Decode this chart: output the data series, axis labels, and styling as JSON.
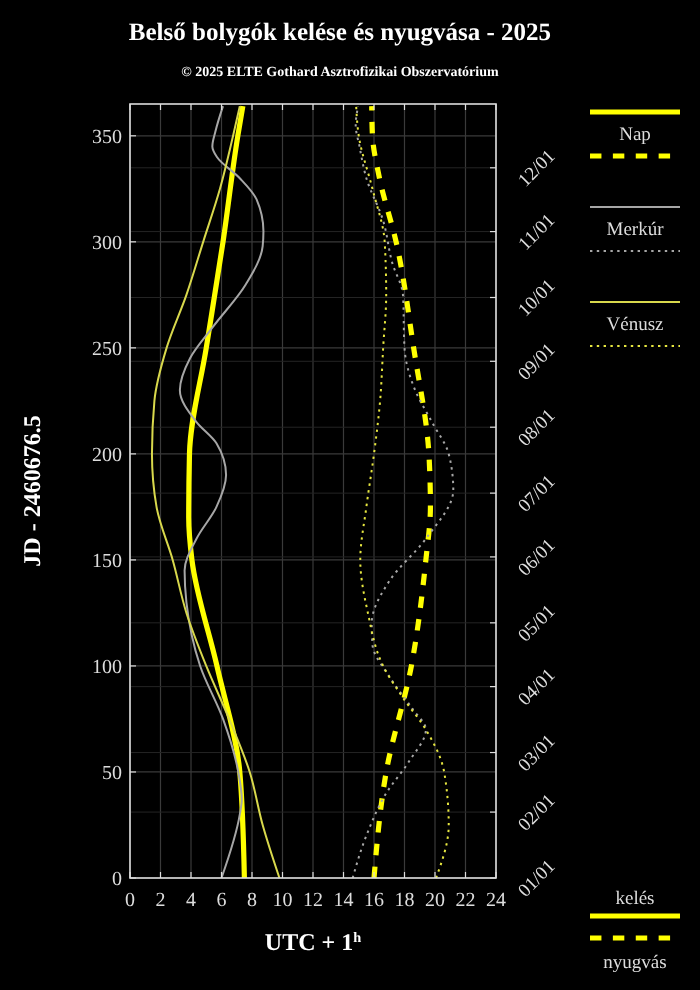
{
  "chart_data": {
    "type": "line",
    "title": "Belső bolygók kelése és nyugvása - 2025",
    "subtitle": "© 2025 ELTE Gothard Asztrofizikai Obszervatórium",
    "xlabel": "UTC + 1$^{h}$",
    "ylabel": "JD - 2460676.5",
    "xlim": [
      0,
      24
    ],
    "xticks": [
      0,
      2,
      4,
      6,
      8,
      10,
      12,
      14,
      16,
      18,
      20,
      22,
      24
    ],
    "ylim": [
      0,
      365
    ],
    "yticks": [
      0,
      50,
      100,
      150,
      200,
      250,
      300,
      350
    ],
    "y2lim": [
      "--01-01",
      "--12-31"
    ],
    "y2ticks": [
      {
        "value": "--01-01",
        "label": "01/01"
      },
      {
        "value": "--02-01",
        "label": "02/01"
      },
      {
        "value": "--03-01",
        "label": "03/01"
      },
      {
        "value": "--04-01",
        "label": "04/01"
      },
      {
        "value": "--05-01",
        "label": "05/01"
      },
      {
        "value": "--06-01",
        "label": "06/01"
      },
      {
        "value": "--07-01",
        "label": "07/01"
      },
      {
        "value": "--08-01",
        "label": "08/01"
      },
      {
        "value": "--09-01",
        "label": "09/01"
      },
      {
        "value": "--10-01",
        "label": "10/01"
      },
      {
        "value": "--11-01",
        "label": "11/01"
      },
      {
        "value": "--12-01",
        "label": "12/01"
      }
    ],
    "grid": true,
    "legend": "right",
    "marker": "none",
    "annotations": [
      "kelés",
      "nyugvás"
    ],
    "series": [
      {
        "name": "Nap",
        "color": "#ffff00",
        "line_style": "solid",
        "x": [
          7.5,
          7.2,
          5.7,
          4.06,
          3.85,
          3.9,
          5.0,
          6.1,
          7.07,
          7.4
        ],
        "values": [
          0,
          50,
          100,
          150,
          170,
          200,
          250,
          300,
          350,
          364
        ]
      },
      {
        "color": "#ffff00",
        "line_style": "dashed",
        "x": [
          16.0,
          16.8,
          18.45,
          19.4,
          19.7,
          19.6,
          18.6,
          17.45,
          16.36,
          15.9,
          15.85
        ],
        "values": [
          0,
          50,
          100,
          150,
          175,
          200,
          250,
          300,
          330,
          350,
          364
        ]
      },
      {
        "name": "Merkúr",
        "color": "#a6a6a6",
        "line_style": "solid",
        "x": [
          6.0,
          7.2,
          7.33,
          7.1,
          6.1,
          4.6,
          3.7,
          3.58,
          4.36,
          5.67,
          6.3,
          5.67,
          4.36,
          3.27,
          3.93,
          5.45,
          7.6,
          8.7,
          8.75,
          8.3,
          7.2,
          5.7,
          5.4,
          5.6,
          6.1
        ],
        "values": [
          0,
          30,
          37,
          50,
          75,
          100,
          130,
          145,
          160,
          175,
          190,
          205,
          215,
          230,
          245,
          260,
          280,
          298,
          305,
          320,
          330,
          340,
          345,
          352,
          364
        ]
      },
      {
        "color": "#a6a6a6",
        "line_style": "dotted",
        "x": [
          14.6,
          15.5,
          16.8,
          18.3,
          19.4,
          18.5,
          17.0,
          15.9,
          15.85,
          17.0,
          19.4,
          21.2,
          20.9,
          19.8,
          18.7,
          18.0,
          17.9,
          17.2,
          16.6,
          15.5,
          15.05,
          14.8,
          14.96
        ],
        "values": [
          0,
          20,
          40,
          55,
          70,
          80,
          95,
          110,
          120,
          140,
          160,
          183,
          200,
          215,
          230,
          250,
          275,
          290,
          310,
          330,
          345,
          355,
          364
        ]
      },
      {
        "name": "Vénusz",
        "color": "#d8d84c",
        "line_style": "solid",
        "x": [
          9.8,
          8.7,
          7.85,
          6.5,
          5.0,
          3.7,
          2.8,
          1.74,
          1.44,
          1.6,
          2.4,
          3.7,
          4.8,
          5.9,
          6.76,
          7.2
        ],
        "values": [
          0,
          25,
          50,
          75,
          100,
          125,
          150,
          175,
          200,
          225,
          250,
          275,
          300,
          325,
          350,
          364
        ]
      },
      {
        "color": "#e6e640",
        "line_style": "dotted",
        "x": [
          20.07,
          20.9,
          20.6,
          19.4,
          17.9,
          16.6,
          15.6,
          15.1,
          15.5,
          16.0,
          16.4,
          16.6,
          16.8,
          16.7,
          15.9,
          15.0,
          14.83
        ],
        "values": [
          0,
          25,
          50,
          70,
          85,
          100,
          125,
          150,
          175,
          200,
          225,
          250,
          275,
          300,
          325,
          350,
          364
        ]
      }
    ]
  }
}
